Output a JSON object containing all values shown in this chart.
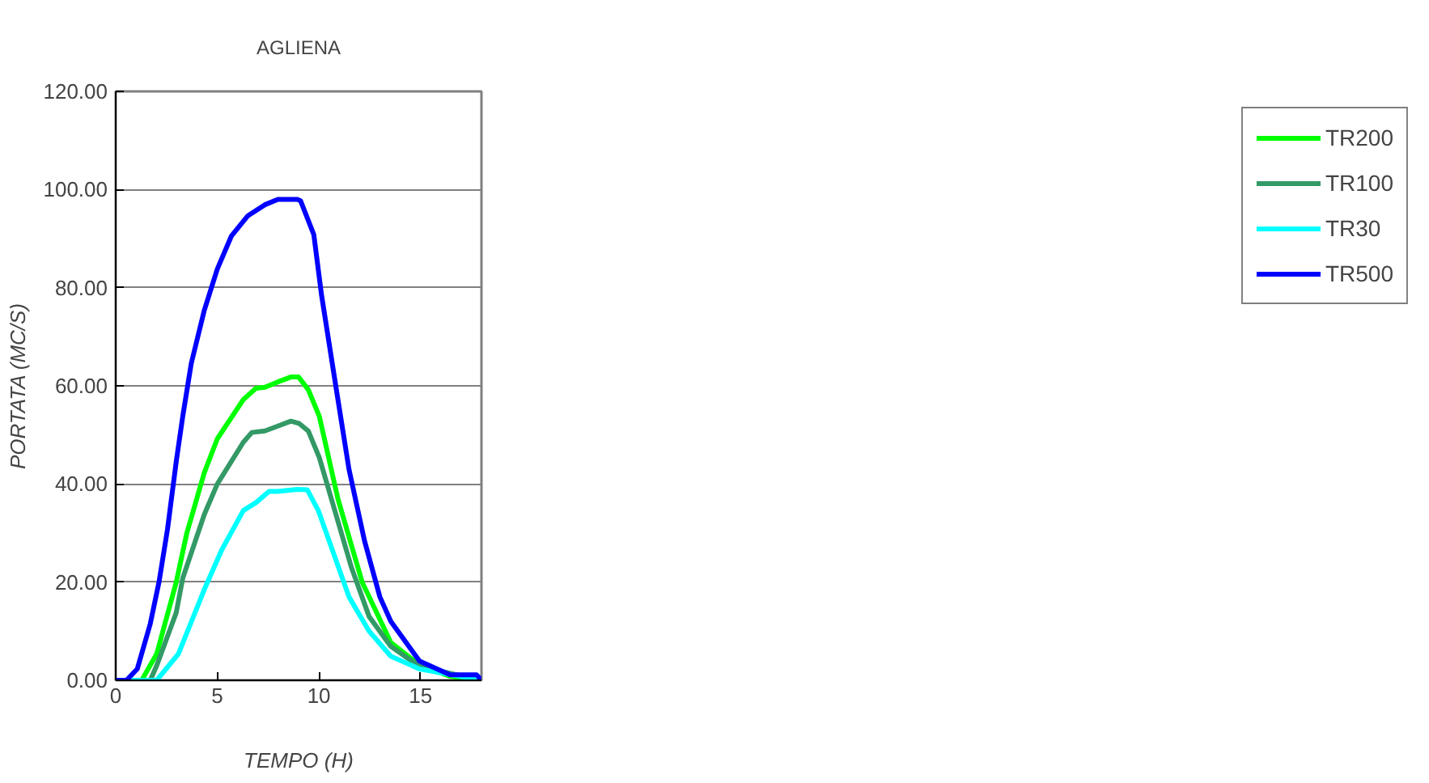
{
  "chart_data": {
    "type": "line",
    "title": "AGLIENA",
    "xlabel": "TEMPO (H)",
    "ylabel": "PORTATA (MC/S)",
    "xlim": [
      0,
      18
    ],
    "xticks": [
      0,
      5,
      10,
      15
    ],
    "ylim": [
      0,
      120
    ],
    "yticks": [
      {
        "value": 0,
        "label": "0.00"
      },
      {
        "value": 20,
        "label": "20.00"
      },
      {
        "value": 40,
        "label": "40.00"
      },
      {
        "value": 60,
        "label": "60.00"
      },
      {
        "value": 80,
        "label": "80.00"
      },
      {
        "value": 100,
        "label": "100.00"
      },
      {
        "value": 120,
        "label": "120.00"
      }
    ],
    "grid": "y",
    "legend": "right",
    "marker": "none",
    "line_style": "solid",
    "series": [
      {
        "name": "TR200",
        "color": "#00ff00",
        "x": [
          0,
          1.28,
          2.02,
          2.98,
          3.5,
          4.36,
          5,
          6.28,
          6.9,
          7.34,
          7.98,
          8.62,
          9,
          9.48,
          10.02,
          10.94,
          12.13,
          13.54,
          14.95,
          16.46,
          18
        ],
        "values": [
          0,
          0,
          5.4,
          20,
          30,
          42.3,
          49.2,
          57.2,
          59.5,
          59.7,
          60.8,
          61.8,
          61.8,
          59.2,
          53.8,
          36.9,
          20,
          7.7,
          3.1,
          0.8,
          0
        ]
      },
      {
        "name": "TR100",
        "color": "#339966",
        "x": [
          0,
          1.7,
          2.02,
          2.98,
          3.3,
          4.36,
          5,
          6.28,
          6.7,
          7.34,
          7.98,
          8.62,
          9.04,
          9.48,
          10.02,
          11.6,
          12.47,
          13.54,
          14.95,
          18
        ],
        "values": [
          0,
          0,
          3,
          13.8,
          20.8,
          33.8,
          40,
          48.5,
          50.5,
          50.8,
          51.8,
          52.8,
          52.3,
          50.8,
          45.4,
          23,
          13,
          6.9,
          2.8,
          0
        ]
      },
      {
        "name": "TR30",
        "color": "#00ffff",
        "x": [
          0,
          2.02,
          3.09,
          4.36,
          5.21,
          6.28,
          6.9,
          7.55,
          7.98,
          8.94,
          9.43,
          9.97,
          11.48,
          12.47,
          13.54,
          14.95,
          18
        ],
        "values": [
          0,
          0,
          5.4,
          18.5,
          26.5,
          34.6,
          36.2,
          38.5,
          38.5,
          38.9,
          38.8,
          34.6,
          17,
          10,
          4.9,
          2.3,
          0
        ]
      },
      {
        "name": "TR500",
        "color": "#0000ff",
        "x": [
          0,
          0.53,
          1.06,
          1.7,
          2.13,
          2.55,
          2.98,
          3.3,
          3.72,
          4.36,
          5,
          5.69,
          6.49,
          7.34,
          7.98,
          8.94,
          9.1,
          9.75,
          10.13,
          10.83,
          11.48,
          12.24,
          13,
          13.54,
          14.95,
          16.46,
          17.76,
          18
        ],
        "values": [
          0,
          0,
          2.3,
          11.5,
          20,
          30.8,
          44.6,
          53.8,
          64.6,
          75.4,
          83.8,
          90.5,
          94.6,
          96.9,
          98,
          98,
          97.7,
          90.8,
          78.5,
          60,
          43,
          28.5,
          17,
          12,
          3.9,
          1.1,
          1.1,
          0
        ]
      }
    ]
  }
}
